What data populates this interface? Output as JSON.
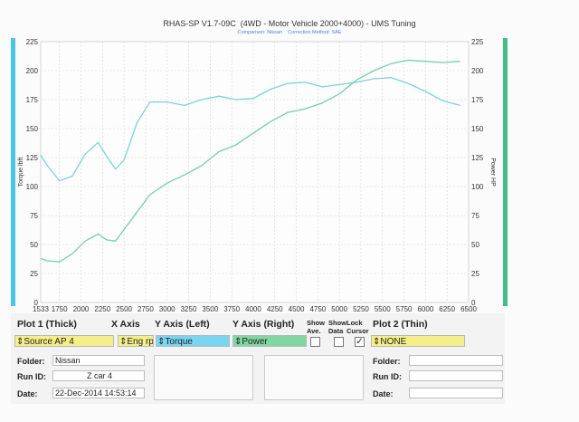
{
  "header": {
    "title": "RHAS-SP V1.7-09C  (4WD - Motor Vehicle 2000+4000) - UMS Tuning",
    "subtitle": "Comparison: Nissan    Correction Method: SAE"
  },
  "colors": {
    "torque": "#78d6d2",
    "power": "#6ed1ad",
    "grid": "#d4d4d4",
    "y_left_color_strip": "#43c8ec",
    "y_right_color_strip": "#3fbf8a",
    "plot1_source_bg": "#f4ef86",
    "x_axis_bg": "#f4ef86",
    "y_left_bg": "#77d7f2",
    "y_right_bg": "#7fd8a0",
    "plot2_bg": "#f4ef86"
  },
  "chart_data": {
    "type": "line",
    "x": [
      1533,
      1600,
      1750,
      1900,
      2050,
      2200,
      2300,
      2400,
      2500,
      2650,
      2800,
      3000,
      3200,
      3400,
      3600,
      3800,
      4000,
      4200,
      4400,
      4600,
      4800,
      5000,
      5200,
      5400,
      5600,
      5800,
      6000,
      6200,
      6400
    ],
    "series": [
      {
        "name": "Torque",
        "axis": "left",
        "values": [
          127,
          119,
          105,
          109,
          128,
          138,
          126,
          115,
          123,
          155,
          173,
          173,
          170,
          175,
          178,
          175,
          176,
          184,
          189,
          190,
          186,
          188,
          190,
          193,
          194,
          189,
          182,
          174,
          170
        ]
      },
      {
        "name": "Power",
        "axis": "right",
        "values": [
          38,
          36,
          35,
          42,
          53,
          59,
          54,
          53,
          63,
          78,
          93,
          103,
          110,
          118,
          130,
          136,
          146,
          156,
          164,
          167,
          172,
          180,
          192,
          200,
          206,
          209,
          208,
          207,
          208
        ]
      }
    ],
    "xticks": [
      1533,
      1750,
      2000,
      2250,
      2500,
      2750,
      3000,
      3250,
      3500,
      3750,
      4000,
      4250,
      4500,
      4750,
      5000,
      5250,
      5500,
      5750,
      6000,
      6250,
      6500
    ],
    "yticks": [
      0,
      25,
      50,
      75,
      100,
      125,
      150,
      175,
      200,
      225
    ],
    "ylabel_left": "Torque lbft",
    "ylabel_right": "Power HP",
    "xlim": [
      1533,
      6500
    ],
    "ylim": [
      0,
      225
    ],
    "grid": true
  },
  "controls": {
    "plot1_title": "Plot 1 (Thick)",
    "xaxis_title": "X Axis",
    "yleft_title": "Y Axis (Left)",
    "yright_title": "Y Axis (Right)",
    "show_ave": "Show\nAve.",
    "show_data": "Show\nData",
    "lock_cursor": "Lock\nCursor",
    "plot2_title": "Plot 2 (Thin)",
    "plot1_source": "Source AP 4",
    "xaxis_value": "Eng rpr",
    "yleft_value": "Torque",
    "yright_value": "Power",
    "plot2_value": "NONE",
    "lock_checked": "✓"
  },
  "info": {
    "folder_label": "Folder:",
    "folder_value": "Nissan",
    "runid_label": "Run ID:",
    "runid_value": "Z car 4",
    "date_label": "Date:",
    "date_value": "22-Dec-2014  14:53:14",
    "folder2_label": "Folder:",
    "runid2_label": "Run ID:",
    "date2_label": "Date:"
  }
}
